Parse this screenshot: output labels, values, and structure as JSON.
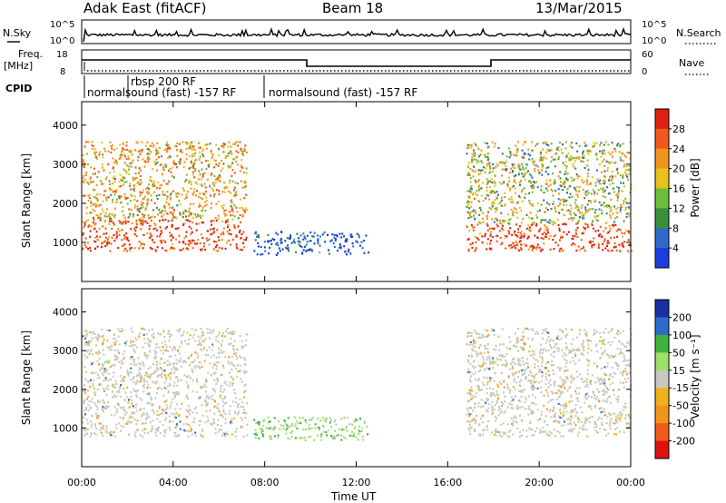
{
  "header": {
    "station": "Adak East (fitACF)",
    "beam": "Beam 18",
    "date": "13/Mar/2015"
  },
  "noise_panel": {
    "left_label": "N.Sky",
    "right_label": "N.Search",
    "left_ticks": [
      "10^5",
      "10^0"
    ],
    "right_ticks": [
      "10^5",
      "10^0"
    ]
  },
  "freq_panel": {
    "left_label_1": "Freq.",
    "left_label_2": "[MHz]",
    "right_label": "Nave",
    "left_ticks": [
      "18",
      "8"
    ],
    "right_ticks": [
      "60",
      "0"
    ],
    "cpid_label": "CPID"
  },
  "cpid_annotations": [
    {
      "text": "normalsound (fast) -157 RF"
    },
    {
      "text": "rbsp 200 RF"
    },
    {
      "text": "normalsound (fast) -157 RF"
    }
  ],
  "colors": {
    "power": [
      "#1a3de0",
      "#2f6bc9",
      "#3a8f3a",
      "#6dbd3b",
      "#e6c21a",
      "#f2951c",
      "#f2581c",
      "#e01e12"
    ],
    "velocity": [
      "#e0120f",
      "#f25a1c",
      "#f2951c",
      "#f2b01c",
      "#c8c8c0",
      "#9be06a",
      "#3fb23f",
      "#2f6bc9",
      "#1a2fa0"
    ]
  },
  "chart_data": [
    {
      "type": "heatmap",
      "name": "power",
      "ylabel": "Slant Range [km]",
      "xlabel": "",
      "yticks": [
        "1000",
        "2000",
        "3000",
        "4000"
      ],
      "ylim": [
        0,
        4600
      ],
      "xlim": [
        0,
        24
      ],
      "colorbar": {
        "label": "Power [dB]",
        "ticks": [
          "4",
          "8",
          "12",
          "16",
          "20",
          "24",
          "28"
        ],
        "range": [
          0,
          32
        ]
      },
      "echo_regions": [
        {
          "t0": 0.0,
          "t1": 7.2,
          "r0": 800,
          "r1": 1600,
          "dominant": "red-orange"
        },
        {
          "t0": 0.0,
          "t1": 7.2,
          "r0": 1600,
          "r1": 3600,
          "dominant": "orange-green"
        },
        {
          "t0": 7.5,
          "t1": 12.5,
          "r0": 700,
          "r1": 1300,
          "dominant": "blue"
        },
        {
          "t0": 16.8,
          "t1": 24.0,
          "r0": 800,
          "r1": 1500,
          "dominant": "red-orange"
        },
        {
          "t0": 16.8,
          "t1": 24.0,
          "r0": 1500,
          "r1": 3600,
          "dominant": "orange-green-blue"
        }
      ]
    },
    {
      "type": "heatmap",
      "name": "velocity",
      "ylabel": "Slant Range [km]",
      "xlabel": "Time UT",
      "yticks": [
        "1000",
        "2000",
        "3000",
        "4000"
      ],
      "ylim": [
        0,
        4600
      ],
      "xlim": [
        0,
        24
      ],
      "xticks": [
        "00:00",
        "04:00",
        "08:00",
        "12:00",
        "16:00",
        "20:00",
        "00:00"
      ],
      "colorbar": {
        "label": "Velocity [m s⁻¹]",
        "ticks": [
          "200",
          "100",
          "50",
          "15",
          "-15",
          "-50",
          "-100",
          "-200"
        ],
        "range": [
          -250,
          250
        ]
      },
      "echo_regions": [
        {
          "t0": 0.0,
          "t1": 7.2,
          "r0": 800,
          "r1": 3600,
          "dominant": "grey"
        },
        {
          "t0": 7.5,
          "t1": 12.5,
          "r0": 700,
          "r1": 1300,
          "dominant": "green"
        },
        {
          "t0": 16.8,
          "t1": 24.0,
          "r0": 800,
          "r1": 3600,
          "dominant": "grey"
        }
      ]
    }
  ]
}
